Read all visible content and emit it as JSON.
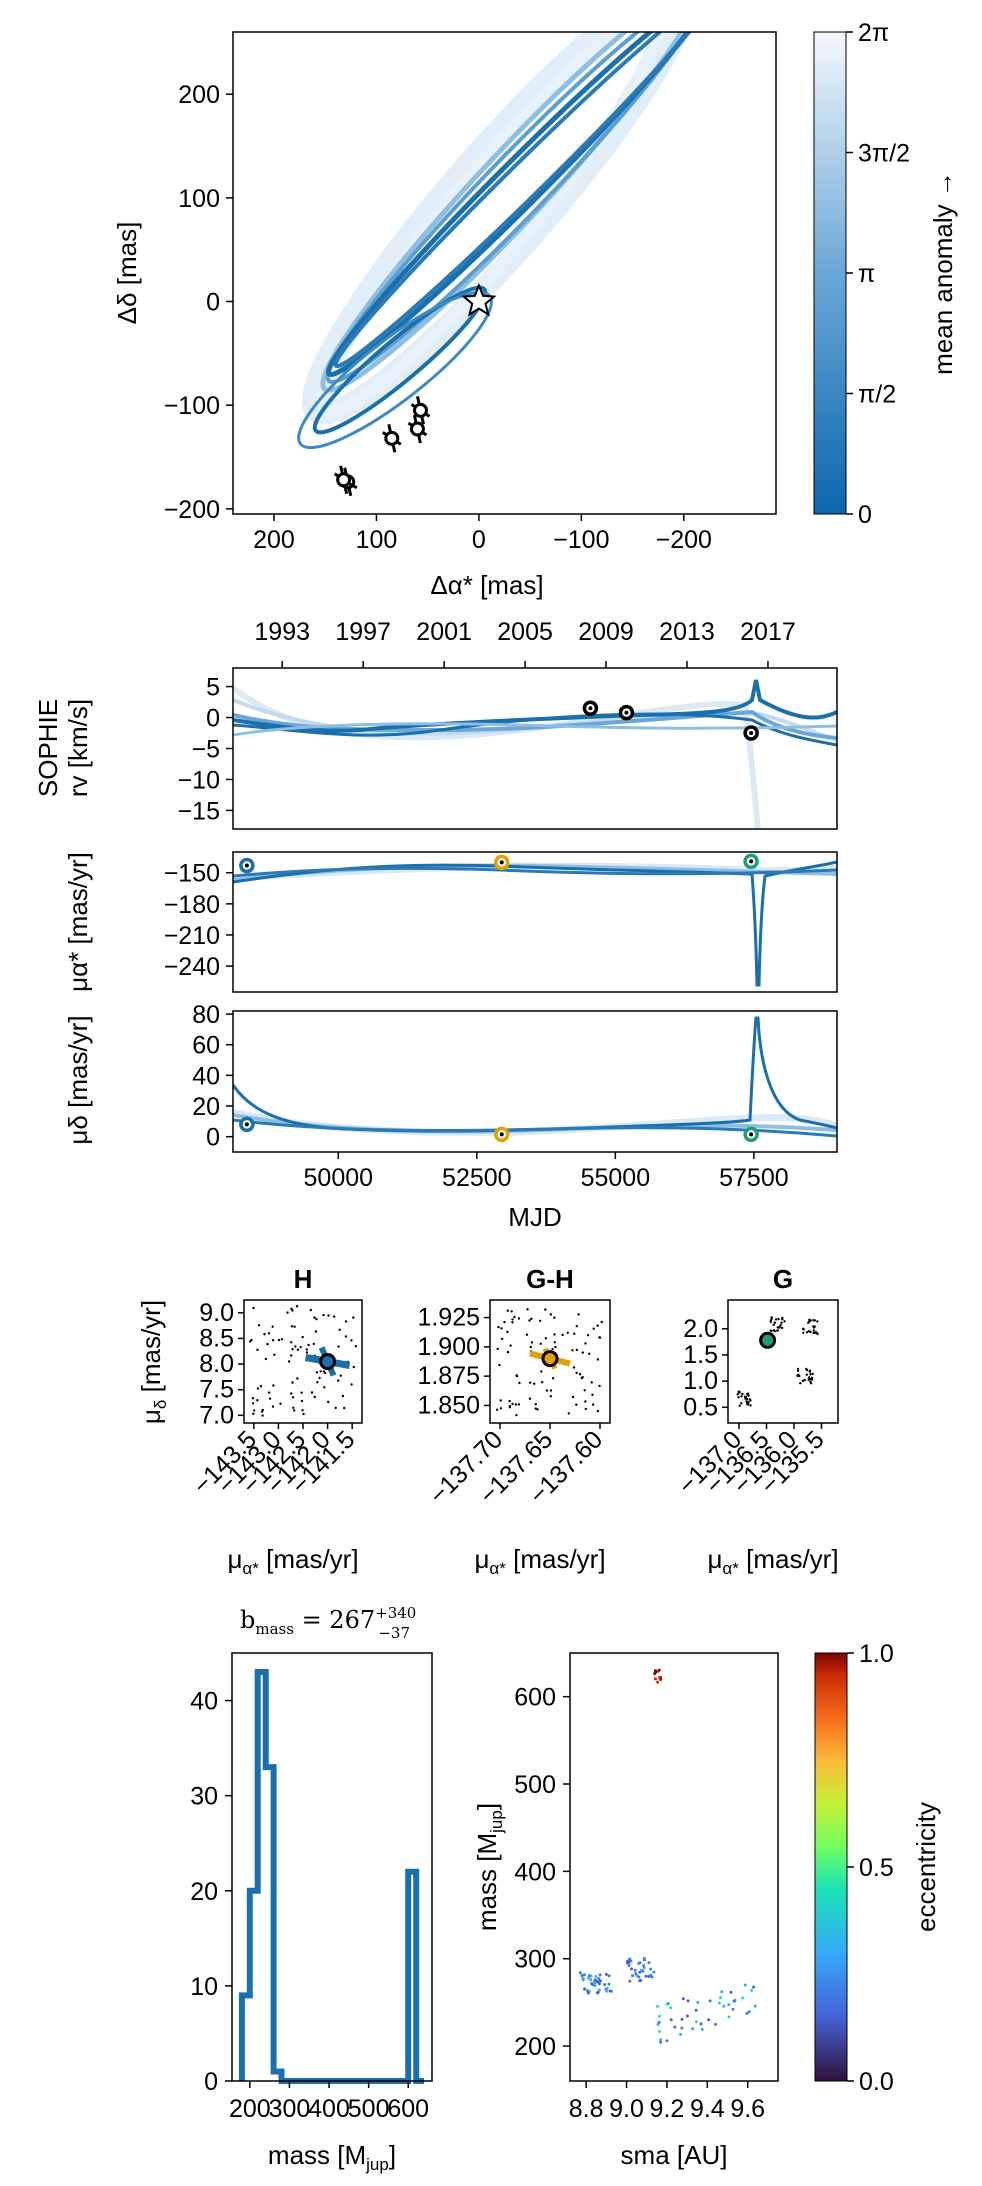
{
  "colors": {
    "orbit_dark": "#1a6fad",
    "orbit_mid": "#5b9fd1",
    "orbit_light": "#cfe1f1",
    "marker_gaia_hip": "#e69f00",
    "marker_gaia": "#1e9e76",
    "hist": "#1a6fad"
  },
  "panel_sky": {
    "xlabel": "Δα* [mas]",
    "ylabel": "Δδ [mas]",
    "xticks": [
      "200",
      "100",
      "0",
      "−100",
      "−200"
    ],
    "yticks": [
      "200",
      "100",
      "0",
      "−100",
      "−200"
    ],
    "colorbar_label": "mean anomaly →",
    "colorbar_ticks": [
      "2π",
      "3π/2",
      "π",
      "π/2",
      "0"
    ],
    "chart_data": {
      "type": "scatter",
      "xlim": [
        240,
        -290
      ],
      "ylim": [
        -205,
        260
      ],
      "star": {
        "x": 0,
        "y": 0
      },
      "astrometry_points": [
        {
          "x": 57,
          "y": -105
        },
        {
          "x": 60,
          "y": -123
        },
        {
          "x": 85,
          "y": -132
        },
        {
          "x": 128,
          "y": -174
        },
        {
          "x": 132,
          "y": -172
        }
      ]
    }
  },
  "panel_time": {
    "top_axis_years": [
      "1993",
      "1997",
      "2001",
      "2005",
      "2009",
      "2013",
      "2017"
    ],
    "xlabel": "MJD",
    "xticks": [
      "50000",
      "52500",
      "55000",
      "57500"
    ],
    "rv": {
      "ylabel_line1": "SOPHIE",
      "ylabel_line2": "rv [km/s]",
      "yticks": [
        "5",
        "0",
        "−5",
        "−10",
        "−15"
      ],
      "chart_data": {
        "type": "line",
        "xlim": [
          48100,
          59000
        ],
        "ylim": [
          -18,
          8
        ],
        "points": [
          {
            "x": 54550,
            "y": 1.5
          },
          {
            "x": 55200,
            "y": 0.8
          },
          {
            "x": 57450,
            "y": -2.5
          }
        ]
      }
    },
    "pmra": {
      "ylabel": "μα* [mas/yr]",
      "yticks": [
        "−150",
        "−180",
        "−210",
        "−240"
      ],
      "chart_data": {
        "type": "line",
        "xlim": [
          48100,
          59000
        ],
        "ylim": [
          -265,
          -130
        ],
        "points": [
          {
            "x": 48350,
            "y": -143
          },
          {
            "x": 52950,
            "y": -140
          },
          {
            "x": 57450,
            "y": -139
          }
        ]
      }
    },
    "pmdec": {
      "ylabel": "μδ [mas/yr]",
      "yticks": [
        "80",
        "60",
        "40",
        "20",
        "0"
      ],
      "chart_data": {
        "type": "line",
        "xlim": [
          48100,
          59000
        ],
        "ylim": [
          -10,
          82
        ],
        "points": [
          {
            "x": 48350,
            "y": 8
          },
          {
            "x": 52950,
            "y": 1.5
          },
          {
            "x": 57450,
            "y": 1.5
          }
        ]
      }
    }
  },
  "panel_pm": {
    "subplots": [
      {
        "title": "H",
        "xlabel": "μα* [mas/yr]",
        "ylabel": "μδ [mas/yr]",
        "xticks": [
          "−143.5",
          "−143.0",
          "−142.5",
          "−142.0",
          "−141.5"
        ],
        "yticks": [
          "9.0",
          "8.5",
          "8.0",
          "7.5",
          "7.0"
        ],
        "chart_data": {
          "type": "scatter",
          "xlim": [
            -143.7,
            -141.3
          ],
          "ylim": [
            6.85,
            9.25
          ],
          "measurement": {
            "x": -142.0,
            "y": 8.05
          }
        }
      },
      {
        "title": "G-H",
        "xlabel": "μα* [mas/yr]",
        "ylabel": "",
        "xticks": [
          "−137.70",
          "−137.65",
          "−137.60"
        ],
        "yticks": [
          "1.925",
          "1.900",
          "1.875",
          "1.850"
        ],
        "chart_data": {
          "type": "scatter",
          "xlim": [
            -137.71,
            -137.59
          ],
          "ylim": [
            1.835,
            1.94
          ],
          "measurement": {
            "x": -137.65,
            "y": 1.89
          }
        }
      },
      {
        "title": "G",
        "xlabel": "μα* [mas/yr]",
        "ylabel": "",
        "xticks": [
          "−137.0",
          "−136.5",
          "−136.0",
          "−135.5"
        ],
        "yticks": [
          "2.0",
          "1.5",
          "1.0",
          "0.5"
        ],
        "chart_data": {
          "type": "scatter",
          "xlim": [
            -137.2,
            -135.2
          ],
          "ylim": [
            0.2,
            2.55
          ],
          "measurement": {
            "x": -136.48,
            "y": 1.78
          }
        }
      }
    ]
  },
  "panel_mass": {
    "annotation": "b_mass = 267 +340 −37",
    "annotation_base": "b",
    "annotation_sub": "mass",
    "annotation_mid": " = 267",
    "annotation_sup": "+340",
    "annotation_inf": "−37",
    "hist": {
      "xlabel": "mass [M",
      "xlabel_sub": "jup",
      "xlabel_end": "]",
      "xticks": [
        "200",
        "300",
        "400",
        "500",
        "600"
      ],
      "yticks": [
        "40",
        "30",
        "20",
        "10",
        "0"
      ],
      "chart_data": {
        "type": "bar",
        "xlim": [
          155,
          660
        ],
        "ylim": [
          0,
          45
        ],
        "bin_edges": [
          180,
          200,
          220,
          240,
          260,
          280,
          300,
          320,
          340,
          360,
          380,
          400,
          420,
          440,
          460,
          480,
          500,
          520,
          540,
          560,
          580,
          600,
          620,
          640
        ],
        "counts": [
          9,
          20,
          43,
          33,
          1,
          0,
          0,
          0,
          0,
          0,
          0,
          0,
          0,
          0,
          0,
          0,
          0,
          0,
          0,
          0,
          0,
          22,
          0
        ]
      }
    },
    "scatter": {
      "xlabel": "sma [AU]",
      "ylabel": "mass [M",
      "ylabel_sub": "jup",
      "ylabel_end": "]",
      "xticks": [
        "8.8",
        "9.0",
        "9.2",
        "9.4",
        "9.6"
      ],
      "yticks": [
        "600",
        "500",
        "400",
        "300",
        "200"
      ],
      "colorbar_label": "eccentricity",
      "colorbar_ticks": [
        "1.0",
        "0.5",
        "0.0"
      ],
      "chart_data": {
        "type": "scatter",
        "xlim": [
          8.72,
          9.75
        ],
        "ylim": [
          160,
          650
        ],
        "clusters": [
          {
            "x_center": 8.85,
            "y_center": 272,
            "eccentricity": 0.3
          },
          {
            "x_center": 9.07,
            "y_center": 288,
            "eccentricity": 0.3
          },
          {
            "x_center": 9.4,
            "y_center": 240,
            "eccentricity": 0.3
          },
          {
            "x_center": 9.15,
            "y_center": 622,
            "eccentricity": 0.95
          }
        ]
      }
    }
  }
}
